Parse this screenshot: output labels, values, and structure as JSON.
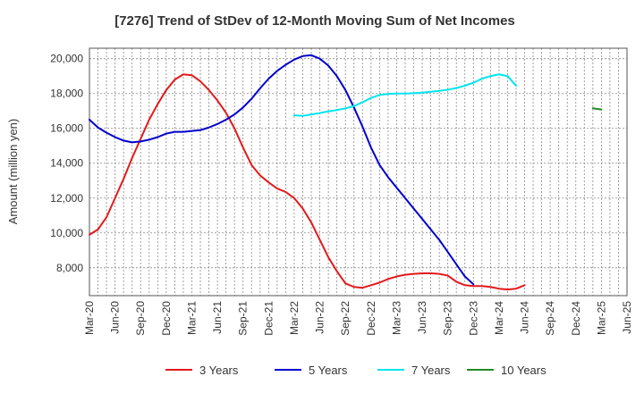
{
  "chart_data": {
    "type": "line",
    "title": "[7276]  Trend of StDev of 12-Month Moving Sum of Net Incomes",
    "xlabel": "",
    "ylabel": "Amount (million yen)",
    "ylim": [
      6400,
      20600
    ],
    "yticks": [
      8000,
      10000,
      12000,
      14000,
      16000,
      18000,
      20000
    ],
    "ytick_labels": [
      "8,000",
      "10,000",
      "12,000",
      "14,000",
      "16,000",
      "18,000",
      "20,000"
    ],
    "xticks": [
      "Mar-20",
      "Jun-20",
      "Sep-20",
      "Dec-20",
      "Mar-21",
      "Jun-21",
      "Sep-21",
      "Dec-21",
      "Mar-22",
      "Jun-22",
      "Sep-22",
      "Dec-22",
      "Mar-23",
      "Jun-23",
      "Sep-23",
      "Dec-23",
      "Mar-24",
      "Jun-24",
      "Sep-24",
      "Dec-24",
      "Mar-25",
      "Jun-25"
    ],
    "grid": true,
    "legend_position": "bottom",
    "series": [
      {
        "name": "3 Years",
        "color": "#e31a1c",
        "start_month_index": 0,
        "values": [
          9900,
          10200,
          10900,
          12000,
          13100,
          14300,
          15400,
          16500,
          17400,
          18200,
          18800,
          19100,
          19050,
          18700,
          18200,
          17600,
          16900,
          16000,
          14900,
          13900,
          13300,
          12900,
          12550,
          12350,
          12000,
          11400,
          10600,
          9600,
          8600,
          7800,
          7100,
          6900,
          6850,
          7000,
          7150,
          7350,
          7500,
          7600,
          7650,
          7680,
          7680,
          7650,
          7550,
          7200,
          7000,
          6950,
          6950,
          6900,
          6800,
          6750,
          6800,
          7000
        ]
      },
      {
        "name": "5 Years",
        "color": "#0000cc",
        "start_month_index": 0,
        "values": [
          16500,
          16050,
          15750,
          15500,
          15300,
          15200,
          15250,
          15350,
          15500,
          15700,
          15800,
          15800,
          15850,
          15900,
          16050,
          16250,
          16500,
          16800,
          17200,
          17700,
          18300,
          18850,
          19300,
          19650,
          19950,
          20150,
          20200,
          20000,
          19600,
          19000,
          18200,
          17200,
          16100,
          14900,
          13900,
          13200,
          12600,
          12000,
          11400,
          10800,
          10200,
          9600,
          8900,
          8200,
          7500,
          7050
        ]
      },
      {
        "name": "7 Years",
        "color": "#00e5ee",
        "start_month_index": 24,
        "values": [
          16750,
          16720,
          16800,
          16880,
          16980,
          17050,
          17150,
          17280,
          17500,
          17750,
          17920,
          17980,
          18000,
          18000,
          18020,
          18050,
          18100,
          18150,
          18220,
          18320,
          18450,
          18620,
          18850,
          19000,
          19100,
          19000,
          18450
        ]
      },
      {
        "name": "10 Years",
        "color": "#228b22",
        "start_month_index": 59,
        "values": [
          17150,
          17080
        ]
      }
    ]
  }
}
